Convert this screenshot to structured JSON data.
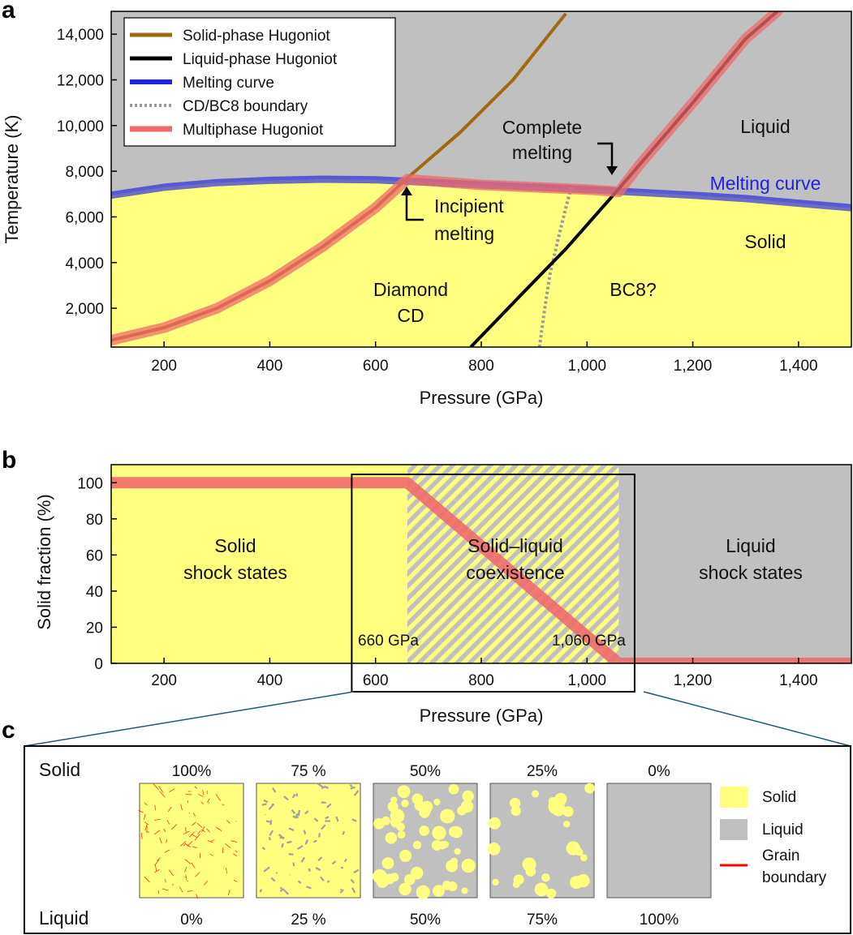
{
  "panels": {
    "a": "a",
    "b": "b",
    "c": "c"
  },
  "colors": {
    "solid_region": "#ffff80",
    "liquid_region": "#c0c0c0",
    "solid_hugoniot": "#a06a10",
    "liquid_hugoniot": "#000000",
    "melting_curve": "#2020e0",
    "boundary": "#999999",
    "multiphase": "#f06a6a",
    "grain_boundary": "#ff0000"
  },
  "chart_data": [
    {
      "type": "line",
      "panel": "a",
      "xlabel": "Pressure (GPa)",
      "ylabel": "Temperature (K)",
      "xlim": [
        100,
        1500
      ],
      "ylim": [
        300,
        15000
      ],
      "xticks": [
        200,
        400,
        600,
        800,
        1000,
        1200,
        1400
      ],
      "xtick_labels": [
        "200",
        "400",
        "600",
        "800",
        "1,000",
        "1,200",
        "1,400"
      ],
      "yticks": [
        2000,
        4000,
        6000,
        8000,
        10000,
        12000,
        14000
      ],
      "ytick_labels": [
        "2,000",
        "4,000",
        "6,000",
        "8,000",
        "10,000",
        "12,000",
        "14,000"
      ],
      "legend_position": "top-left",
      "series": [
        {
          "name": "Solid-phase Hugoniot",
          "x": [
            100,
            200,
            300,
            400,
            500,
            600,
            660,
            760,
            860,
            960
          ],
          "y": [
            600,
            1150,
            2000,
            3200,
            4700,
            6400,
            7700,
            9700,
            12000,
            14900
          ]
        },
        {
          "name": "Liquid-phase Hugoniot",
          "x": [
            780,
            880,
            960,
            1040,
            1100,
            1200,
            1300,
            1360
          ],
          "y": [
            300,
            2700,
            4600,
            6700,
            8300,
            11000,
            13800,
            15000
          ]
        },
        {
          "name": "Melting curve",
          "x": [
            100,
            200,
            300,
            400,
            500,
            600,
            700,
            800,
            900,
            1000,
            1100,
            1200,
            1300,
            1400,
            1500
          ],
          "y": [
            6950,
            7300,
            7500,
            7600,
            7650,
            7620,
            7520,
            7400,
            7300,
            7200,
            7070,
            6950,
            6800,
            6600,
            6400
          ]
        },
        {
          "name": "CD/BC8 boundary",
          "x": [
            910,
            920,
            930,
            945,
            960,
            970
          ],
          "y": [
            300,
            2000,
            3500,
            5000,
            6400,
            7300
          ]
        },
        {
          "name": "Multiphase Hugoniot",
          "x": [
            100,
            200,
            300,
            400,
            500,
            600,
            660,
            800,
            900,
            1000,
            1060,
            1100,
            1200,
            1300,
            1360
          ],
          "y": [
            600,
            1150,
            2000,
            3200,
            4700,
            6400,
            7650,
            7400,
            7300,
            7200,
            7100,
            8300,
            11000,
            13800,
            15000
          ]
        }
      ],
      "regions": {
        "liquid": "Liquid",
        "solid": "Solid",
        "diamond_1": "Diamond",
        "diamond_2": "CD",
        "bc8": "BC8?"
      },
      "annotations": {
        "melting_curve_label": "Melting curve",
        "incipient_1": "Incipient",
        "incipient_2": "melting",
        "complete_1": "Complete",
        "complete_2": "melting"
      }
    },
    {
      "type": "line",
      "panel": "b",
      "xlabel": "Pressure (GPa)",
      "ylabel": "Solid fraction (%)",
      "xlim": [
        100,
        1500
      ],
      "ylim": [
        0,
        110
      ],
      "xticks": [
        200,
        400,
        600,
        800,
        1000,
        1200,
        1400
      ],
      "xtick_labels": [
        "200",
        "400",
        "600",
        "800",
        "1,000",
        "1,200",
        "1,400"
      ],
      "yticks": [
        0,
        20,
        40,
        60,
        80,
        100
      ],
      "ytick_labels": [
        "0",
        "20",
        "40",
        "60",
        "80",
        "100"
      ],
      "series": [
        {
          "x": [
            100,
            660,
            1060,
            1500
          ],
          "y": [
            100,
            100,
            0,
            0
          ]
        }
      ],
      "regions": {
        "solid_1": "Solid",
        "solid_2": "shock states",
        "coex_1": "Solid–liquid",
        "coex_2": "coexistence",
        "liquid_1": "Liquid",
        "liquid_2": "shock states"
      },
      "annotations": {
        "p1": "660 GPa",
        "p2": "1,060 GPa"
      },
      "zoom_box_x": [
        555,
        1090
      ]
    },
    {
      "type": "table",
      "panel": "c",
      "row_label_top": "Solid",
      "row_label_bottom": "Liquid",
      "solid_fractions": [
        "100%",
        "75 %",
        "50%",
        "25%",
        "0%"
      ],
      "liquid_fractions": [
        "0%",
        "25 %",
        "50%",
        "75%",
        "100%"
      ],
      "solid_fraction_values": [
        1.0,
        0.75,
        0.5,
        0.25,
        0.0
      ],
      "legend": [
        "Solid",
        "Liquid",
        "Grain",
        "boundary"
      ]
    }
  ]
}
